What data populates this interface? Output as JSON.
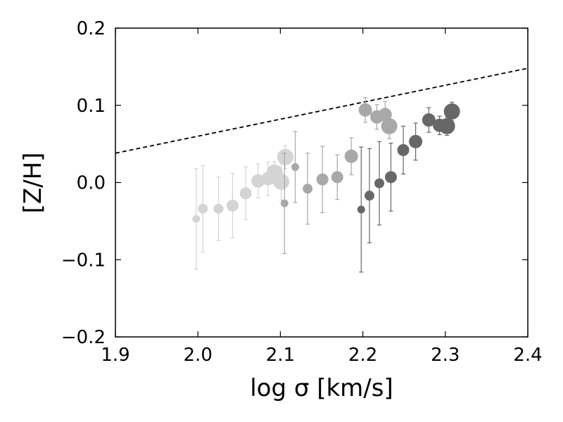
{
  "chart_data": {
    "type": "scatter",
    "title": "",
    "xlabel": "log σ [km/s]",
    "ylabel": "[Z/H]",
    "xlim": [
      1.9,
      2.4
    ],
    "ylim": [
      -0.2,
      0.2
    ],
    "xticks": [
      1.9,
      2.0,
      2.1,
      2.2,
      2.3,
      2.4
    ],
    "xtick_labels": [
      "1.9",
      "2.0",
      "2.1",
      "2.2",
      "2.3",
      "2.4"
    ],
    "yticks": [
      -0.2,
      -0.1,
      0.0,
      0.1,
      0.2
    ],
    "ytick_labels": [
      "−0.2",
      "−0.1",
      "0.0",
      "0.1",
      "0.2"
    ],
    "grid": false,
    "legend": "none",
    "reference_line": {
      "style": "dashed",
      "color": "#000000",
      "x": [
        1.9,
        2.4
      ],
      "y": [
        0.038,
        0.148
      ]
    },
    "series": [
      {
        "color": "#d4d4d4",
        "points": [
          {
            "x": 1.998,
            "y": -0.047,
            "err": 0.065,
            "size": 1
          },
          {
            "x": 2.006,
            "y": -0.034,
            "err": 0.056,
            "size": 2
          },
          {
            "x": 2.025,
            "y": -0.034,
            "err": 0.041,
            "size": 2
          },
          {
            "x": 2.042,
            "y": -0.03,
            "err": 0.042,
            "size": 3
          },
          {
            "x": 2.058,
            "y": -0.014,
            "err": 0.034,
            "size": 3
          },
          {
            "x": 2.073,
            "y": 0.002,
            "err": 0.022,
            "size": 4
          },
          {
            "x": 2.085,
            "y": 0.005,
            "err": 0.022,
            "size": 4
          },
          {
            "x": 2.093,
            "y": 0.013,
            "err": 0.014,
            "size": 5
          },
          {
            "x": 2.101,
            "y": 0.001,
            "err": 0.024,
            "size": 5
          },
          {
            "x": 2.106,
            "y": 0.033,
            "err": 0.015,
            "size": 5
          }
        ]
      },
      {
        "color": "#a8a8a8",
        "points": [
          {
            "x": 2.105,
            "y": -0.027,
            "err": 0.065,
            "size": 1
          },
          {
            "x": 2.118,
            "y": 0.02,
            "err": 0.046,
            "size": 1
          },
          {
            "x": 2.133,
            "y": -0.008,
            "err": 0.046,
            "size": 2
          },
          {
            "x": 2.151,
            "y": 0.004,
            "err": 0.043,
            "size": 3
          },
          {
            "x": 2.169,
            "y": 0.007,
            "err": 0.029,
            "size": 3
          },
          {
            "x": 2.186,
            "y": 0.034,
            "err": 0.024,
            "size": 4
          },
          {
            "x": 2.203,
            "y": 0.094,
            "err": 0.016,
            "size": 4
          },
          {
            "x": 2.217,
            "y": 0.085,
            "err": 0.016,
            "size": 4
          },
          {
            "x": 2.227,
            "y": 0.088,
            "err": 0.017,
            "size": 4
          },
          {
            "x": 2.232,
            "y": 0.073,
            "err": 0.016,
            "size": 5
          }
        ]
      },
      {
        "color": "#676767",
        "points": [
          {
            "x": 2.198,
            "y": -0.035,
            "err": 0.081,
            "size": 1
          },
          {
            "x": 2.208,
            "y": -0.017,
            "err": 0.061,
            "size": 2
          },
          {
            "x": 2.22,
            "y": -0.001,
            "err": 0.054,
            "size": 2
          },
          {
            "x": 2.234,
            "y": 0.007,
            "err": 0.044,
            "size": 3
          },
          {
            "x": 2.249,
            "y": 0.042,
            "err": 0.031,
            "size": 3
          },
          {
            "x": 2.264,
            "y": 0.053,
            "err": 0.024,
            "size": 4
          },
          {
            "x": 2.28,
            "y": 0.081,
            "err": 0.016,
            "size": 4
          },
          {
            "x": 2.293,
            "y": 0.074,
            "err": 0.012,
            "size": 4
          },
          {
            "x": 2.302,
            "y": 0.073,
            "err": 0.012,
            "size": 5
          },
          {
            "x": 2.308,
            "y": 0.092,
            "err": 0.012,
            "size": 5
          }
        ]
      }
    ]
  }
}
